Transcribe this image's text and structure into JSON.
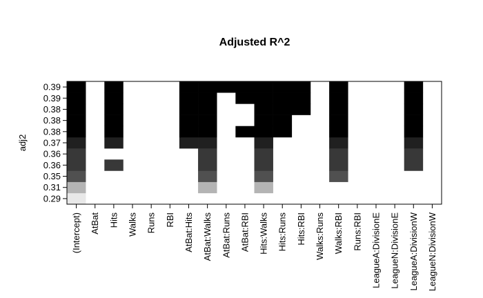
{
  "chart_data": {
    "type": "heatmap",
    "title": "Adjusted R^2",
    "ylabel": "adj2",
    "xlabel": "",
    "x_labels": [
      "(Intercept)",
      "AtBat",
      "Hits",
      "Walks",
      "Runs",
      "RBI",
      "AtBat:Hits",
      "AtBat:Walks",
      "AtBat:Runs",
      "AtBat:RBI",
      "Hits:Walks",
      "Hits:Runs",
      "Hits:RBI",
      "Walks:Runs",
      "Walks:RBI",
      "Runs:RBI",
      "LeagueA:DivisionE",
      "LeagueN:DivisionE",
      "LeagueA:DivisionW",
      "LeagueN:DivisionW"
    ],
    "y_labels": [
      "0.29",
      "0.31",
      "0.35",
      "0.36",
      "0.36",
      "0.37",
      "0.38",
      "0.38",
      "0.38",
      "0.39",
      "0.39"
    ],
    "row_shades": [
      "#e8e8e8",
      "#b4b4b4",
      "#505050",
      "#383838",
      "#383838",
      "#202020",
      "#000000",
      "#000000",
      "#000000",
      "#000000",
      "#000000"
    ],
    "included": [
      [
        0
      ],
      [
        0,
        7,
        10
      ],
      [
        0,
        7,
        10,
        14
      ],
      [
        0,
        2,
        7,
        10,
        14,
        18
      ],
      [
        0,
        7,
        10,
        14,
        18
      ],
      [
        0,
        2,
        6,
        7,
        10,
        14,
        18
      ],
      [
        0,
        2,
        6,
        7,
        9,
        10,
        11,
        14,
        18
      ],
      [
        0,
        2,
        6,
        7,
        10,
        11,
        14,
        18
      ],
      [
        0,
        2,
        6,
        7,
        10,
        11,
        12,
        14,
        18
      ],
      [
        0,
        2,
        6,
        7,
        9,
        10,
        11,
        12,
        14,
        18
      ],
      [
        0,
        2,
        6,
        7,
        8,
        9,
        10,
        11,
        12,
        14,
        18
      ]
    ]
  }
}
